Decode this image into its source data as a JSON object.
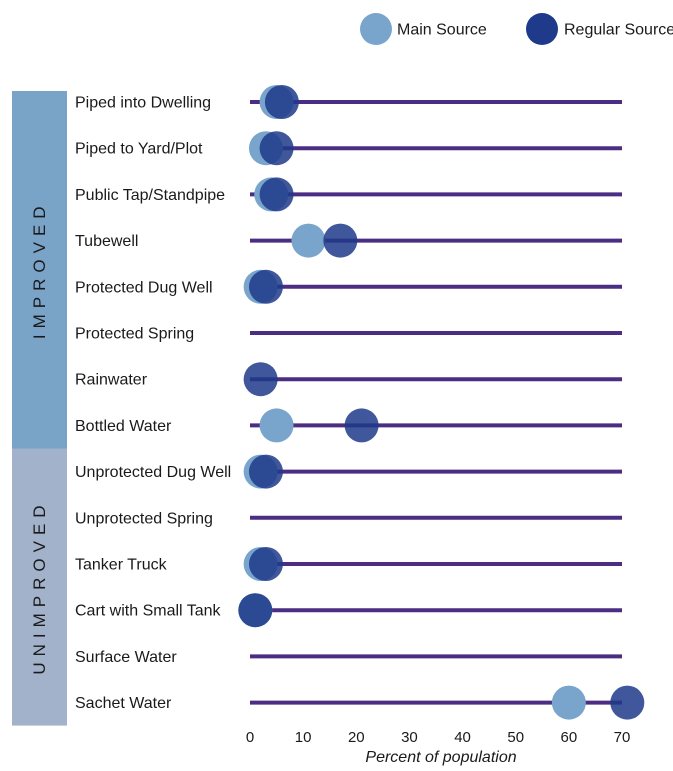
{
  "chart_data": {
    "type": "scatter",
    "xlabel": "Percent of population",
    "xlim": [
      0,
      70
    ],
    "xticks": [
      0,
      10,
      20,
      30,
      40,
      50,
      60,
      70
    ],
    "legend": {
      "placement": "top-right"
    },
    "series": [
      {
        "name": "Main Source",
        "color": "#79a5cc",
        "values": [
          5,
          3,
          4,
          11,
          2,
          null,
          null,
          5,
          2,
          null,
          2,
          1,
          null,
          60
        ]
      },
      {
        "name": "Regular Source",
        "color": "#1f3a8a",
        "values": [
          6,
          5,
          5,
          17,
          3,
          null,
          2,
          21,
          3,
          null,
          3,
          1,
          null,
          71
        ]
      }
    ],
    "categories": [
      "Piped into Dwelling",
      "Piped to Yard/Plot",
      "Public Tap/Standpipe",
      "Tubewell",
      "Protected Dug Well",
      "Protected Spring",
      "Rainwater",
      "Bottled Water",
      "Unprotected Dug Well",
      "Unprotected Spring",
      "Tanker Truck",
      "Cart with Small Tank",
      "Surface Water",
      "Sachet Water"
    ],
    "groups": [
      {
        "label": "IMPROVED",
        "color": "#7aa3c8",
        "start": 0,
        "end": 7
      },
      {
        "label": "UNIMPROVED",
        "color": "#a2b2cb",
        "start": 8,
        "end": 13
      }
    ],
    "line_color": "#4b2e83"
  }
}
